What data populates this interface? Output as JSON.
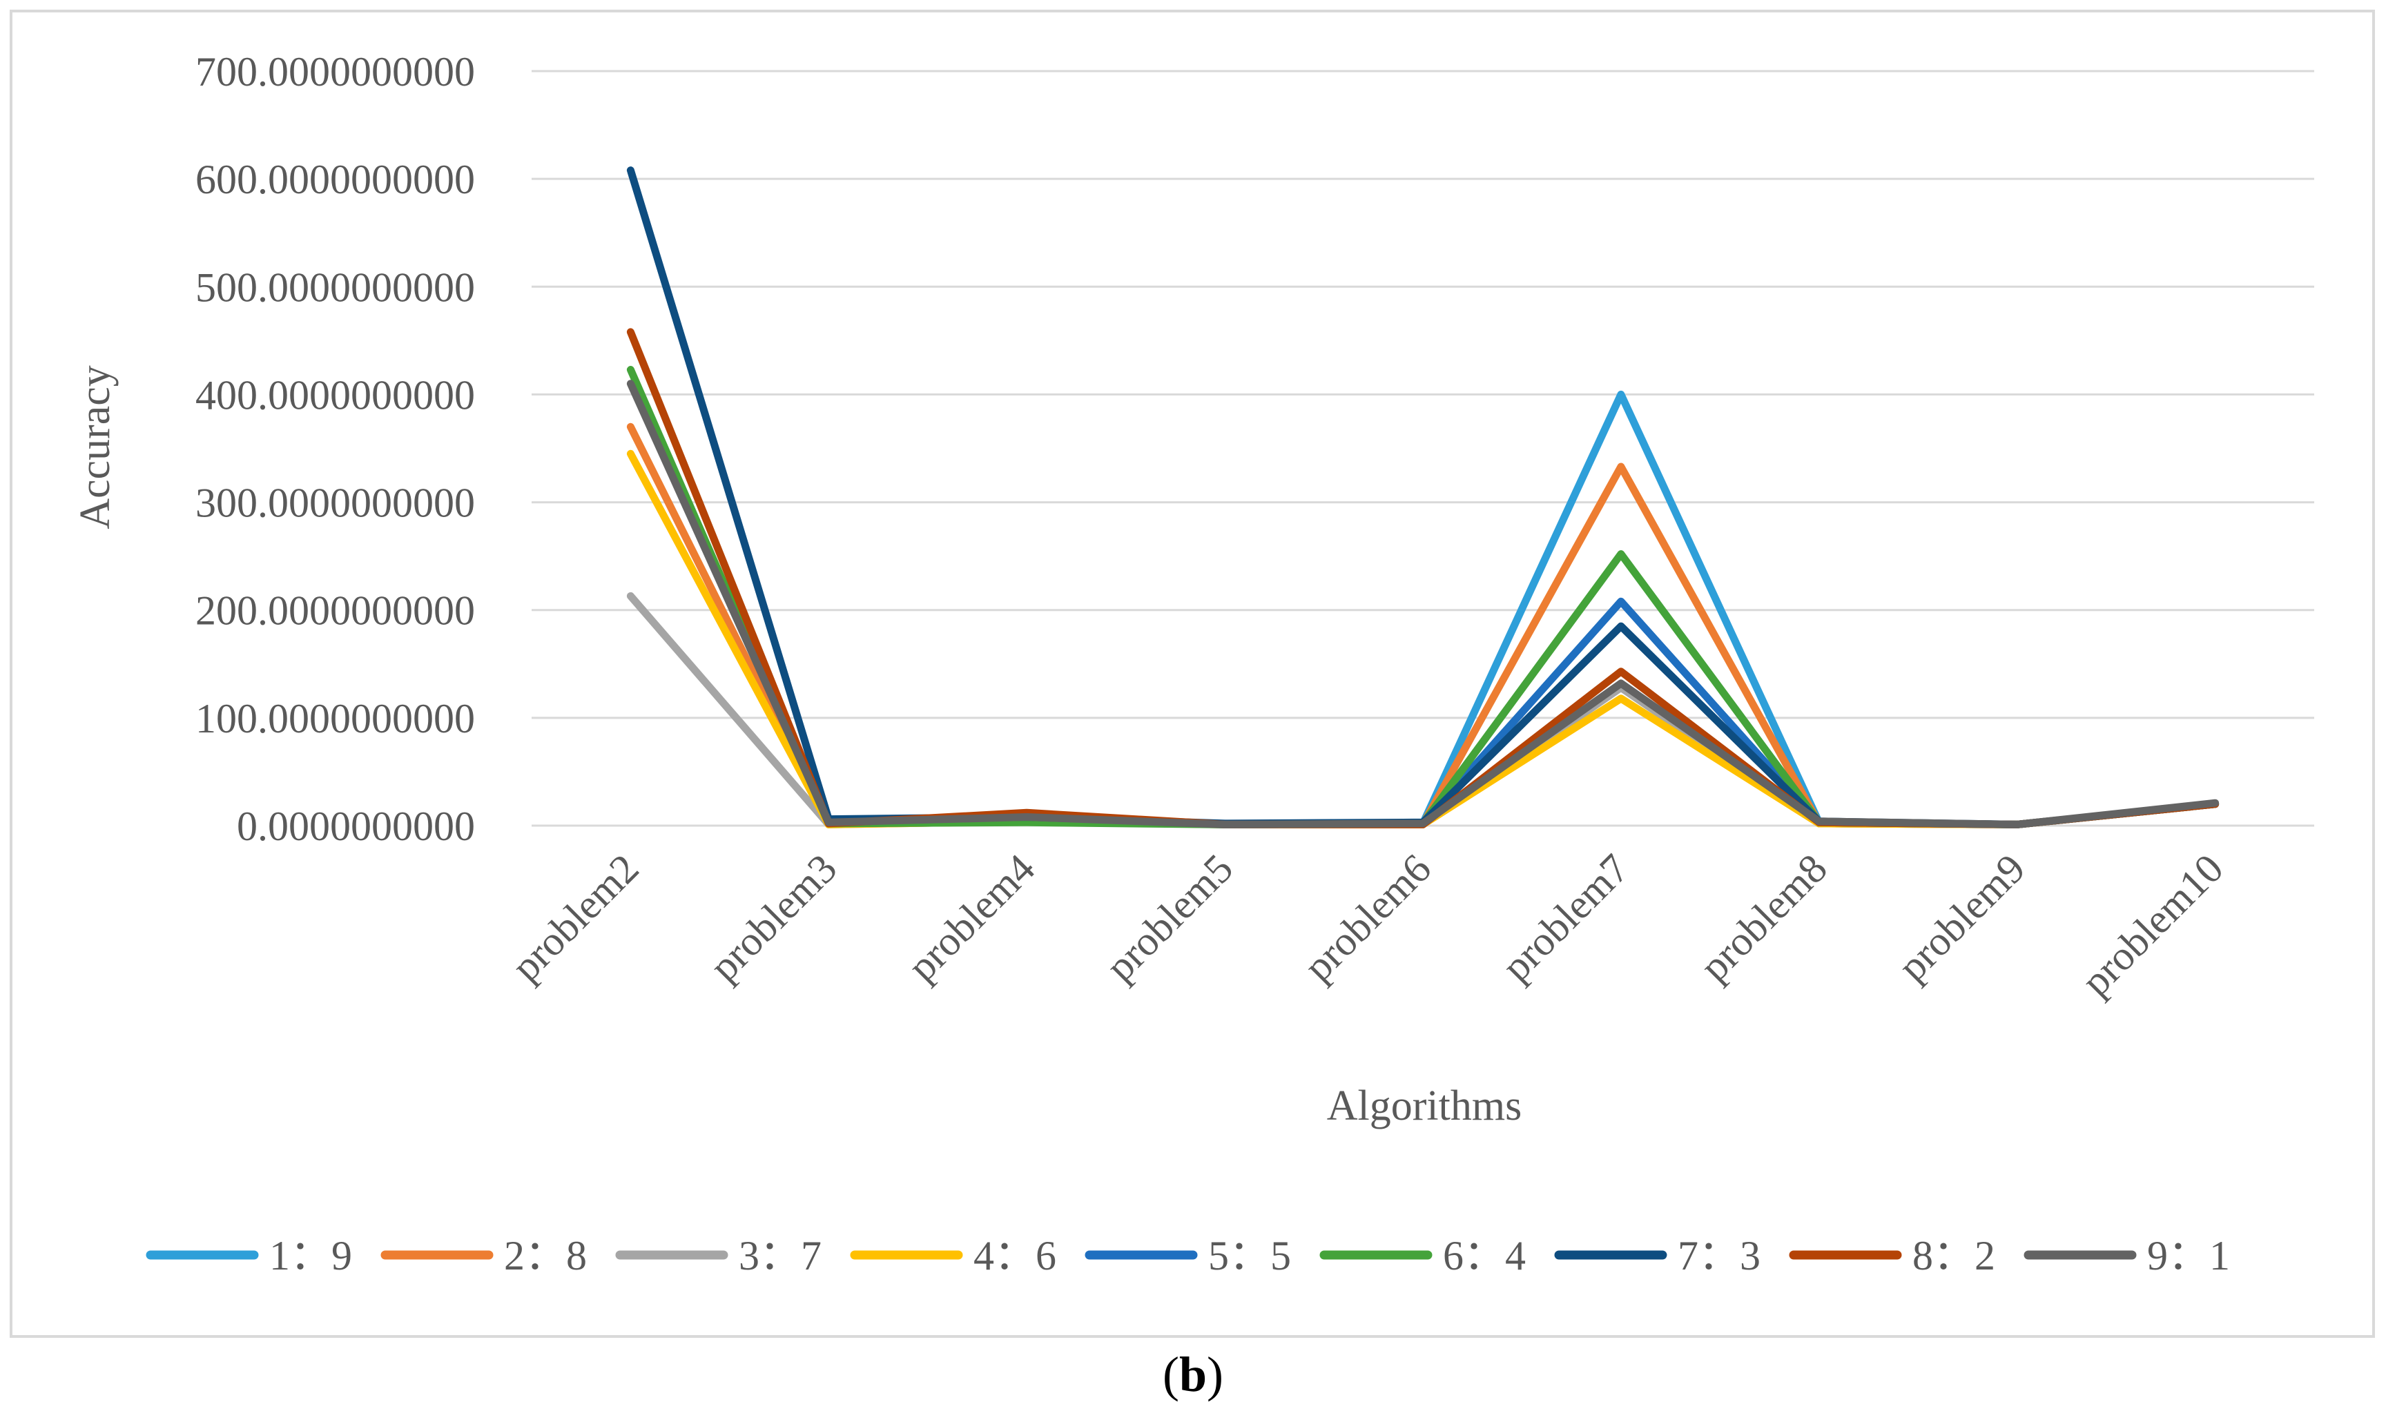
{
  "chart_data": {
    "type": "line",
    "title": "",
    "xlabel": "Algorithms",
    "ylabel": "Accuracy",
    "ylim": [
      0,
      700
    ],
    "yticks": [
      0,
      100,
      200,
      300,
      400,
      500,
      600,
      700
    ],
    "ytick_labels": [
      "0.0000000000",
      "100.0000000000",
      "200.0000000000",
      "300.0000000000",
      "400.0000000000",
      "500.0000000000",
      "600.0000000000",
      "700.0000000000"
    ],
    "grid": true,
    "legend_position": "bottom",
    "categories": [
      "problem2",
      "problem3",
      "problem4",
      "problem5",
      "problem6",
      "problem7",
      "problem8",
      "problem9",
      "problem10"
    ],
    "series": [
      {
        "name": "1：9",
        "color": "#2e9fd9",
        "values": [
          null,
          3,
          5,
          1,
          2,
          400,
          3,
          1,
          20
        ]
      },
      {
        "name": "2：8",
        "color": "#ed7d31",
        "values": [
          370,
          2,
          8,
          1,
          1,
          333,
          2,
          1,
          20
        ]
      },
      {
        "name": "3：7",
        "color": "#a5a5a5",
        "values": [
          213,
          1,
          4,
          1,
          1,
          128,
          2,
          1,
          20
        ]
      },
      {
        "name": "4：6",
        "color": "#ffc000",
        "values": [
          345,
          1,
          4,
          1,
          1,
          118,
          2,
          1,
          20
        ]
      },
      {
        "name": "5：5",
        "color": "#1f6fc0",
        "values": [
          null,
          3,
          6,
          1,
          2,
          208,
          3,
          1,
          20
        ]
      },
      {
        "name": "6：4",
        "color": "#44a33a",
        "values": [
          423,
          2,
          3,
          1,
          2,
          252,
          3,
          1,
          20
        ]
      },
      {
        "name": "7：3",
        "color": "#0e4d80",
        "values": [
          608,
          6,
          8,
          2,
          3,
          185,
          4,
          1,
          20
        ]
      },
      {
        "name": "8：2",
        "color": "#b54306",
        "values": [
          458,
          2,
          12,
          1,
          1,
          143,
          3,
          1,
          20
        ]
      },
      {
        "name": "9：1",
        "color": "#636363",
        "values": [
          410,
          3,
          8,
          1,
          2,
          132,
          4,
          1,
          21
        ]
      }
    ]
  },
  "caption": {
    "open": "(",
    "letter": "b",
    "close": ")"
  }
}
